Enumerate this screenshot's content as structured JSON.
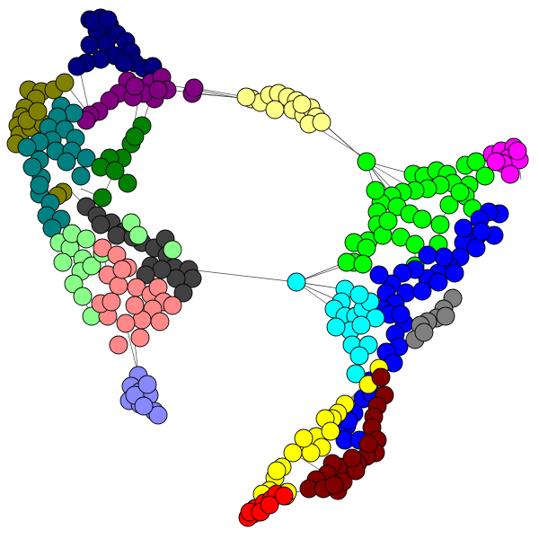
{
  "graph": {
    "type": "community-network",
    "node_outline": "#000000",
    "edge_color": "#444444",
    "communities": [
      {
        "id": "navy",
        "color": "#000080"
      },
      {
        "id": "purple",
        "color": "#800080"
      },
      {
        "id": "olive",
        "color": "#808000"
      },
      {
        "id": "teal",
        "color": "#008080"
      },
      {
        "id": "dark-green",
        "color": "#008000"
      },
      {
        "id": "light-yellow",
        "color": "#FFFF88"
      },
      {
        "id": "dark-gray",
        "color": "#404040"
      },
      {
        "id": "light-green",
        "color": "#88FF88"
      },
      {
        "id": "salmon",
        "color": "#FF8888"
      },
      {
        "id": "periwinkle",
        "color": "#8888FF"
      },
      {
        "id": "green",
        "color": "#00FF00"
      },
      {
        "id": "magenta",
        "color": "#FF00FF"
      },
      {
        "id": "blue",
        "color": "#0000FF"
      },
      {
        "id": "gray",
        "color": "#808080"
      },
      {
        "id": "cyan",
        "color": "#00FFFF"
      },
      {
        "id": "yellow",
        "color": "#FFFF00"
      },
      {
        "id": "dark-red",
        "color": "#800000"
      },
      {
        "id": "red",
        "color": "#FF0000"
      }
    ]
  }
}
